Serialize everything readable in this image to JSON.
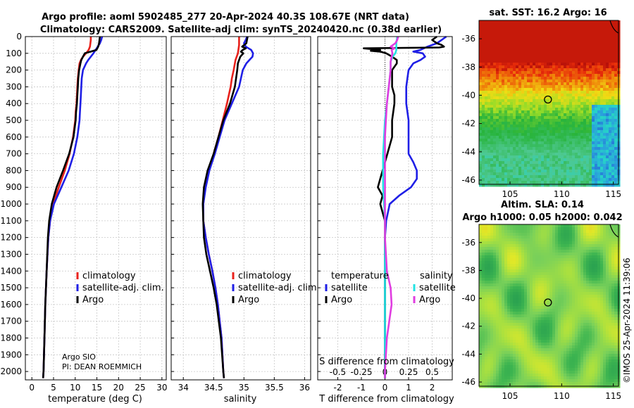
{
  "header": {
    "title_line1": "Argo profile: aoml 5902485_277 20-Apr-2024 40.3S 108.67E (NRT data)",
    "title_line2": "Climatology: CARS2009. Satellite-adj clim: synTS_20240420.nc (0.38d earlier)"
  },
  "credits": {
    "argo": "Argo SIO",
    "pi": "PI: DEAN ROEMMICH",
    "imos": "©IMOS 25-Apr-2024 11:39:06"
  },
  "colors": {
    "climatology": "#e8211b",
    "satellite": "#1f1fe6",
    "argo": "#000000",
    "s_satellite": "#22e3e3",
    "s_argo": "#e03ce0",
    "grid": "#c8c8c8"
  },
  "depth_axis": {
    "ticks": [
      0,
      100,
      200,
      300,
      400,
      500,
      600,
      700,
      800,
      900,
      1000,
      1100,
      1200,
      1300,
      1400,
      1500,
      1600,
      1700,
      1800,
      1900,
      2000
    ],
    "range": [
      0,
      2050
    ]
  },
  "chart_data": [
    {
      "id": "temperature",
      "type": "line",
      "xlabel": "temperature (deg C)",
      "xlim": [
        -1.5,
        31
      ],
      "xticks": [
        0,
        5,
        10,
        15,
        20,
        25,
        30
      ],
      "ylim": [
        2050,
        0
      ],
      "legend": [
        "climatology",
        "satellite-adj. clim.",
        "Argo"
      ],
      "series": [
        {
          "name": "climatology",
          "depth": [
            0,
            20,
            40,
            60,
            80,
            100,
            120,
            140,
            160,
            200,
            250,
            300,
            350,
            400,
            450,
            500,
            600,
            700,
            800,
            900,
            1000,
            1100,
            1200,
            1400,
            1600,
            1800,
            2000,
            2040
          ],
          "values": [
            13.6,
            13.6,
            13.5,
            13.4,
            13.1,
            12.5,
            11.8,
            11.3,
            11.0,
            10.8,
            10.6,
            10.5,
            10.4,
            10.3,
            10.1,
            10.0,
            9.5,
            8.7,
            7.6,
            6.2,
            4.9,
            4.2,
            3.8,
            3.4,
            3.1,
            2.9,
            2.7,
            2.6
          ]
        },
        {
          "name": "satellite-adj. clim.",
          "depth": [
            0,
            20,
            40,
            60,
            80,
            100,
            120,
            140,
            160,
            200,
            250,
            300,
            350,
            400,
            450,
            500,
            600,
            700,
            800,
            900,
            1000,
            1100,
            1200,
            1400,
            1600,
            1800,
            2000,
            2040
          ],
          "values": [
            16.2,
            16.0,
            15.7,
            15.2,
            14.7,
            14.2,
            13.6,
            13.0,
            12.5,
            11.8,
            11.5,
            11.4,
            11.3,
            11.2,
            11.1,
            11.0,
            10.5,
            9.7,
            8.5,
            6.8,
            5.1,
            4.2,
            3.8,
            3.4,
            3.1,
            2.9,
            2.7,
            2.6
          ]
        },
        {
          "name": "Argo",
          "depth": [
            0,
            20,
            40,
            60,
            80,
            100,
            120,
            140,
            160,
            200,
            250,
            300,
            350,
            400,
            450,
            500,
            600,
            700,
            800,
            900,
            1000,
            1100,
            1200,
            1400,
            1600,
            1800,
            2000,
            2040
          ],
          "values": [
            15.7,
            15.6,
            15.5,
            15.3,
            14.9,
            12.2,
            11.8,
            11.4,
            11.2,
            10.9,
            10.7,
            10.6,
            10.5,
            10.4,
            10.2,
            10.1,
            9.6,
            8.6,
            7.2,
            5.7,
            4.6,
            4.0,
            3.7,
            3.4,
            3.1,
            2.9,
            2.7,
            2.6
          ]
        }
      ]
    },
    {
      "id": "salinity",
      "type": "line",
      "xlabel": "salinity",
      "xlim": [
        33.8,
        36.1
      ],
      "xticks": [
        34,
        34.5,
        35,
        35.5,
        36
      ],
      "xticklabels": [
        "34",
        "34.5",
        "35",
        "35.5",
        "36"
      ],
      "ylim": [
        2050,
        0
      ],
      "legend": [
        "climatology",
        "satellite-adj. clim.",
        "Argo"
      ],
      "series": [
        {
          "name": "climatology",
          "depth": [
            0,
            50,
            100,
            140,
            200,
            250,
            300,
            400,
            500,
            600,
            700,
            800,
            900,
            1000,
            1100,
            1200,
            1300,
            1400,
            1500,
            1600,
            1800,
            2000,
            2040
          ],
          "values": [
            34.92,
            34.92,
            34.9,
            34.86,
            34.83,
            34.8,
            34.78,
            34.72,
            34.65,
            34.58,
            34.5,
            34.42,
            34.36,
            34.33,
            34.33,
            34.37,
            34.42,
            34.48,
            34.53,
            34.57,
            34.63,
            34.66,
            34.67
          ]
        },
        {
          "name": "satellite-adj. clim.",
          "depth": [
            0,
            20,
            40,
            60,
            80,
            100,
            120,
            140,
            160,
            200,
            250,
            300,
            400,
            500,
            600,
            700,
            800,
            900,
            1000,
            1100,
            1200,
            1300,
            1400,
            1500,
            1600,
            1800,
            2000,
            2040
          ],
          "values": [
            35.05,
            35.03,
            35.0,
            35.03,
            35.12,
            35.15,
            35.14,
            35.09,
            35.04,
            34.98,
            34.95,
            34.92,
            34.8,
            34.68,
            34.6,
            34.52,
            34.43,
            34.37,
            34.33,
            34.33,
            34.37,
            34.42,
            34.48,
            34.53,
            34.57,
            34.63,
            34.66,
            34.67
          ]
        },
        {
          "name": "Argo",
          "depth": [
            0,
            20,
            40,
            60,
            70,
            80,
            90,
            100,
            120,
            140,
            160,
            200,
            250,
            300,
            400,
            500,
            600,
            700,
            800,
            900,
            1000,
            1100,
            1200,
            1300,
            1400,
            1500,
            1600,
            1800,
            2000,
            2040
          ],
          "values": [
            35.06,
            35.05,
            35.04,
            34.97,
            35.03,
            34.98,
            34.95,
            34.99,
            34.94,
            34.92,
            34.9,
            34.89,
            34.87,
            34.85,
            34.77,
            34.66,
            34.58,
            34.5,
            34.4,
            34.34,
            34.32,
            34.33,
            34.34,
            34.38,
            34.44,
            34.5,
            34.55,
            34.62,
            34.66,
            34.67
          ]
        }
      ]
    },
    {
      "id": "difference",
      "type": "line",
      "xlabel": "T difference from climatology",
      "x2label": "S difference from climatology",
      "xlim": [
        -2.85,
        2.85
      ],
      "xticks": [
        -2,
        -1,
        0,
        1,
        2
      ],
      "s_ticks": [
        -0.5,
        -0.25,
        0,
        0.25,
        0.5
      ],
      "s_ticklabels": [
        "-0.5",
        "-0.25",
        "0",
        "0.25",
        "0.5"
      ],
      "s_scale": 4,
      "ylim": [
        2050,
        0
      ],
      "legend_temperature_header": "temperature",
      "legend_salinity_header": "salinity",
      "legend_labels": {
        "satellite": "satellite",
        "argo": "Argo"
      },
      "series": [
        {
          "name": "temperature satellite",
          "unit": "degC",
          "depth": [
            0,
            20,
            40,
            60,
            80,
            90,
            100,
            120,
            140,
            160,
            200,
            250,
            300,
            350,
            400,
            500,
            600,
            700,
            750,
            800,
            850,
            900,
            950,
            1000,
            1100,
            1200,
            1300,
            1400,
            1600,
            1800,
            2000,
            2040
          ],
          "values": [
            2.6,
            2.4,
            2.2,
            1.8,
            1.5,
            1.2,
            1.6,
            1.7,
            1.5,
            1.2,
            1.0,
            0.95,
            0.9,
            0.9,
            0.9,
            1.0,
            1.0,
            1.0,
            1.2,
            1.35,
            1.35,
            1.1,
            0.6,
            0.2,
            0.05,
            0.0,
            0.0,
            0.0,
            0.0,
            0.0,
            0.0,
            0.0
          ]
        },
        {
          "name": "temperature Argo",
          "unit": "degC",
          "depth": [
            0,
            20,
            40,
            50,
            60,
            65,
            70,
            75,
            80,
            85,
            90,
            100,
            120,
            140,
            160,
            200,
            250,
            300,
            350,
            400,
            500,
            600,
            700,
            800,
            900,
            950,
            1000,
            1050,
            1100,
            1200,
            1400,
            1600,
            1800,
            2000,
            2040
          ],
          "values": [
            2.2,
            2.0,
            2.2,
            2.4,
            2.5,
            2.3,
            -0.9,
            -0.5,
            -0.2,
            -0.6,
            -0.2,
            0.05,
            0.3,
            0.5,
            0.5,
            0.3,
            0.3,
            0.3,
            0.4,
            0.4,
            0.3,
            0.3,
            0.1,
            -0.1,
            -0.3,
            -0.1,
            -0.2,
            -0.1,
            0.0,
            0.0,
            0.0,
            0.0,
            0.0,
            0.0,
            0.0
          ]
        },
        {
          "name": "salinity satellite",
          "unit": "psu",
          "depth": [
            0,
            40,
            80,
            100,
            120,
            150,
            200,
            250,
            300,
            400,
            500,
            600,
            700,
            800,
            900,
            1000,
            1100,
            1200,
            1400,
            1600,
            1800,
            2000,
            2040
          ],
          "values": [
            0.13,
            0.12,
            0.12,
            0.11,
            0.08,
            0.06,
            0.06,
            0.05,
            0.04,
            0.02,
            0.0,
            -0.01,
            -0.02,
            -0.02,
            -0.02,
            -0.01,
            0.0,
            0.0,
            0.0,
            0.0,
            0.0,
            0.0,
            0.0
          ]
        },
        {
          "name": "salinity Argo",
          "unit": "psu",
          "depth": [
            0,
            20,
            40,
            60,
            70,
            80,
            100,
            120,
            150,
            200,
            300,
            400,
            500,
            600,
            700,
            800,
            900,
            1000,
            1200,
            1400,
            1500,
            1600,
            1800,
            2000,
            2040
          ],
          "values": [
            0.14,
            0.13,
            0.11,
            0.06,
            0.1,
            0.07,
            0.08,
            0.07,
            0.06,
            0.06,
            0.04,
            0.02,
            0.01,
            0.0,
            0.0,
            0.0,
            0.0,
            0.0,
            0.0,
            0.02,
            0.06,
            0.07,
            0.02,
            0.0,
            0.0
          ]
        }
      ]
    },
    {
      "id": "sst_map",
      "type": "heatmap",
      "title": "sat. SST: 16.2  Argo: 16",
      "xticks": [
        105,
        110,
        115
      ],
      "yticks": [
        -36,
        -38,
        -40,
        -42,
        -44,
        -46
      ],
      "xlim": [
        102,
        115.5
      ],
      "ylim": [
        -46.3,
        -34.7
      ],
      "float_position": {
        "lon": 108.67,
        "lat": -40.3
      },
      "colorscale": [
        "#1e22c8",
        "#2aa0dc",
        "#26d2c8",
        "#4ec890",
        "#28b43c",
        "#98dc28",
        "#f0dc14",
        "#f08c0a",
        "#e82c0a",
        "#aa0a0a"
      ]
    },
    {
      "id": "sla_map",
      "type": "heatmap",
      "title": "Altim. SLA: 0.14",
      "subtitle": "Argo h1000: 0.05 h2000: 0.042",
      "xticks": [
        105,
        110,
        115
      ],
      "yticks": [
        -36,
        -38,
        -40,
        -42,
        -44,
        -46
      ],
      "xlim": [
        102,
        115.5
      ],
      "ylim": [
        -46.3,
        -34.7
      ],
      "float_position": {
        "lon": 108.67,
        "lat": -40.3
      },
      "colorscale": [
        "#28a050",
        "#3cb450",
        "#78d05a",
        "#a8e040",
        "#e0e828",
        "#f0b41e"
      ]
    }
  ]
}
